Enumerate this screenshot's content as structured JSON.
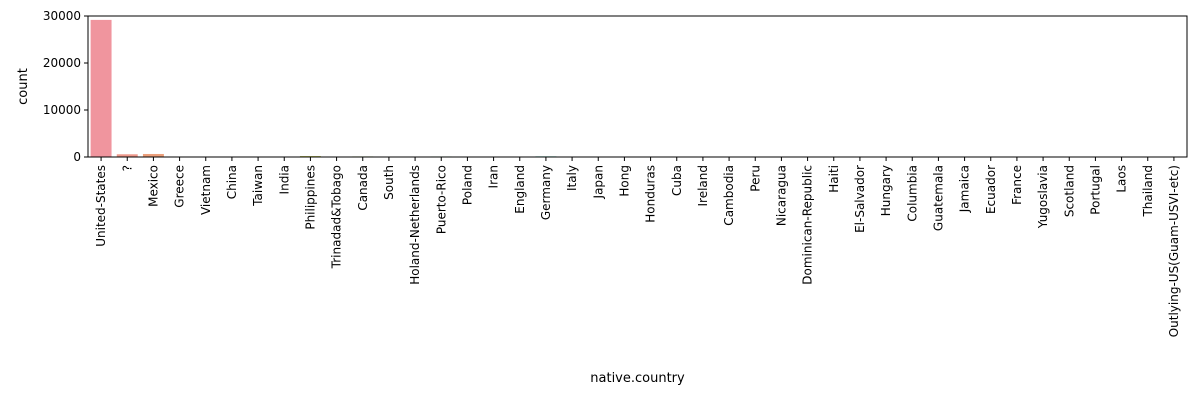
{
  "chart_data": {
    "type": "bar",
    "xlabel": "native.country",
    "ylabel": "count",
    "ylim": [
      0,
      30000
    ],
    "yticks": [
      0,
      10000,
      20000,
      30000
    ],
    "grid": false,
    "categories": [
      "United-States",
      "?",
      "Mexico",
      "Greece",
      "Vietnam",
      "China",
      "Taiwan",
      "India",
      "Philippines",
      "Trinadad&Tobago",
      "Canada",
      "South",
      "Holand-Netherlands",
      "Puerto-Rico",
      "Poland",
      "Iran",
      "England",
      "Germany",
      "Italy",
      "Japan",
      "Hong",
      "Honduras",
      "Cuba",
      "Ireland",
      "Cambodia",
      "Peru",
      "Nicaragua",
      "Dominican-Republic",
      "Haiti",
      "El-Salvador",
      "Hungary",
      "Columbia",
      "Guatemala",
      "Jamaica",
      "Ecuador",
      "France",
      "Yugoslavia",
      "Scotland",
      "Portugal",
      "Laos",
      "Thailand",
      "Outlying-US(Guam-USVI-etc)"
    ],
    "values": [
      29170,
      583,
      643,
      29,
      67,
      75,
      51,
      100,
      198,
      19,
      121,
      80,
      1,
      114,
      60,
      43,
      90,
      137,
      73,
      62,
      20,
      13,
      95,
      24,
      19,
      31,
      34,
      70,
      44,
      106,
      13,
      59,
      64,
      81,
      28,
      29,
      16,
      12,
      37,
      18,
      18,
      14
    ],
    "colors": [
      "#f0959e",
      "#ef9a8d",
      "#ec9f7b",
      "#e7a66b",
      "#e2ab62",
      "#dbb05a",
      "#d2b555",
      "#c8ba50",
      "#bbbe4f",
      "#aec251",
      "#a0c558",
      "#8fc862",
      "#7dca6e",
      "#6acb7b",
      "#5bcb8a",
      "#52cb98",
      "#4fcaa5",
      "#4fc9b1",
      "#50c7bc",
      "#52c5c6",
      "#55c3ce",
      "#59c0d7",
      "#5fbde0",
      "#66b9e7",
      "#6fb4ee",
      "#7aaef3",
      "#87a8f6",
      "#95a1f8",
      "#a39af8",
      "#b193f6",
      "#bd8df2",
      "#c888ed",
      "#d285e6",
      "#da84de",
      "#e184d5",
      "#e686cb",
      "#ea88c1",
      "#ed8ab7",
      "#ef8dad",
      "#f090a5",
      "#f0939e",
      "#f09598"
    ]
  }
}
